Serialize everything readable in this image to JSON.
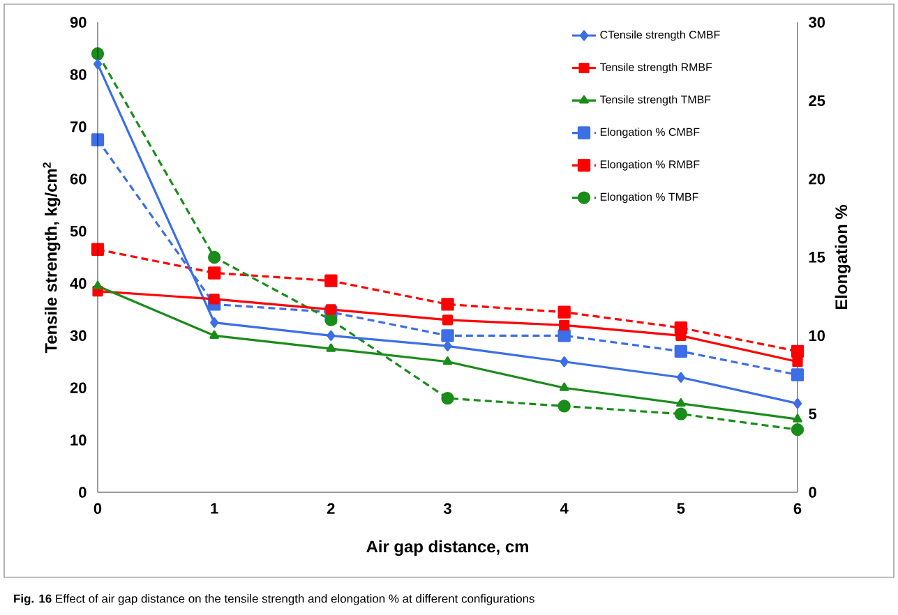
{
  "chart_data": {
    "type": "line",
    "xlabel": "Air gap distance, cm",
    "ylabel": "Tensile strength, kg/cm$^{2}$",
    "y2label": "Elongation %",
    "x": [
      0,
      1,
      2,
      3,
      4,
      5,
      6
    ],
    "xlim": [
      0,
      6
    ],
    "xticks": [
      0,
      1,
      2,
      3,
      4,
      5,
      6
    ],
    "ylim": [
      0,
      90
    ],
    "yticks": [
      0,
      10,
      20,
      30,
      40,
      50,
      60,
      70,
      80,
      90
    ],
    "y2lim": [
      0,
      30
    ],
    "y2ticks": [
      0,
      5,
      10,
      15,
      20,
      25,
      30
    ],
    "legend": "top right",
    "grid": false,
    "annotations": [
      "**Fig. 16** Effect of air gap distance on the tensile strength and elongation % at different configurations"
    ],
    "series": [
      {
        "name": "CTensile strength CMBF",
        "color": "#3c6ee6",
        "marker": "diamond",
        "line_style": "solid",
        "values": [
          82,
          32.5,
          30,
          28,
          25,
          22,
          17
        ]
      },
      {
        "name": "Tensile strength RMBF",
        "color": "#ff0000",
        "marker": "square",
        "line_style": "solid",
        "values": [
          38.5,
          37,
          35,
          33,
          32,
          30,
          25
        ]
      },
      {
        "name": "Tensile strength TMBF",
        "color": "#1a8c1a",
        "marker": "triangle",
        "line_style": "solid",
        "values": [
          39.5,
          30,
          27.5,
          25,
          20,
          17,
          14
        ]
      },
      {
        "name": "Elongation % CMBF",
        "color": "#3c6ee6",
        "marker": "square",
        "line_style": "dashed",
        "axis": "y2",
        "values": [
          22.5,
          12,
          11.5,
          10,
          10,
          9,
          7.5
        ]
      },
      {
        "name": "Elongation % RMBF",
        "color": "#ff0000",
        "marker": "square",
        "line_style": "dashed",
        "axis": "y2",
        "values": [
          15.5,
          14,
          13.5,
          12,
          11.5,
          10.5,
          9
        ]
      },
      {
        "name": "Elongation % TMBF",
        "color": "#1a8c1a",
        "marker": "circle",
        "line_style": "dashed",
        "axis": "y2",
        "values": [
          28,
          15,
          11,
          6,
          5.5,
          5,
          4
        ]
      }
    ]
  }
}
